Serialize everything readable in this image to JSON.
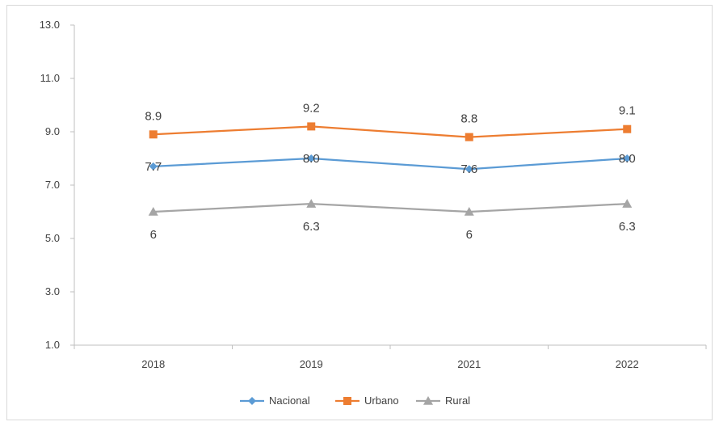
{
  "chart_data": {
    "type": "line",
    "categories": [
      "2018",
      "2019",
      "2021",
      "2022"
    ],
    "ylim": [
      1.0,
      13.0
    ],
    "yticks": [
      "1.0",
      "3.0",
      "5.0",
      "7.0",
      "9.0",
      "11.0",
      "13.0"
    ],
    "grid": false,
    "legend_position": "bottom",
    "series": [
      {
        "name": "Nacional",
        "color": "#5b9bd5",
        "marker": "diamond",
        "values": [
          7.7,
          8.0,
          7.6,
          8.0
        ],
        "labels": [
          "7.7",
          "8.0",
          "7.6",
          "8.0"
        ],
        "label_position": "center"
      },
      {
        "name": "Urbano",
        "color": "#ed7d31",
        "marker": "square",
        "values": [
          8.9,
          9.2,
          8.8,
          9.1
        ],
        "labels": [
          "8.9",
          "9.2",
          "8.8",
          "9.1"
        ],
        "label_position": "above"
      },
      {
        "name": "Rural",
        "color": "#a5a5a5",
        "marker": "triangle",
        "values": [
          6.0,
          6.3,
          6.0,
          6.3
        ],
        "labels": [
          "6",
          "6.3",
          "6",
          "6.3"
        ],
        "label_position": "below"
      }
    ]
  }
}
